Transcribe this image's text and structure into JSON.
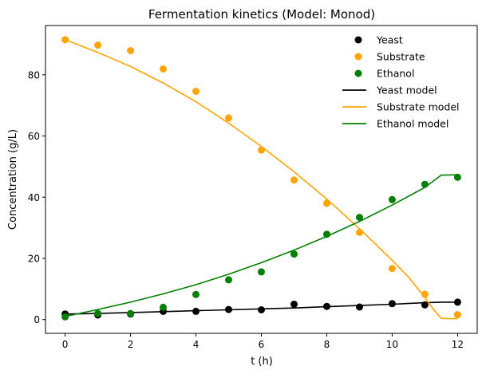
{
  "chart_data": {
    "type": "scatter",
    "title": "Fermentation kinetics (Model: Monod)",
    "xlabel": "t (h)",
    "ylabel": "Concentration (g/L)",
    "xlim": [
      -0.6,
      12.6
    ],
    "ylim": [
      -4.5,
      96.1
    ],
    "xticks": [
      0,
      2,
      4,
      6,
      8,
      10,
      12
    ],
    "yticks": [
      0,
      20,
      40,
      60,
      80
    ],
    "grid": false,
    "legend_position": "top-right",
    "x": [
      0,
      1,
      2,
      3,
      4,
      5,
      6,
      7,
      8,
      9,
      10,
      11,
      12
    ],
    "points": [
      {
        "name": "Yeast",
        "color": "#000000",
        "values": [
          1.8,
          1.5,
          1.8,
          2.7,
          2.7,
          3.3,
          3.2,
          5.0,
          4.3,
          4.1,
          5.2,
          4.8,
          5.7
        ]
      },
      {
        "name": "Substrate",
        "color": "#FFA500",
        "values": [
          91.5,
          89.7,
          87.9,
          81.9,
          74.6,
          65.9,
          55.4,
          45.6,
          38.0,
          28.5,
          16.7,
          8.3,
          1.6
        ]
      },
      {
        "name": "Ethanol",
        "color": "#008000",
        "values": [
          0.9,
          2.0,
          2.0,
          4.0,
          8.2,
          13.0,
          15.6,
          21.4,
          27.9,
          33.4,
          39.2,
          44.2,
          46.5
        ]
      }
    ],
    "models": [
      {
        "name": "Yeast model",
        "color": "#000000",
        "x": [
          0,
          1,
          2,
          3,
          4,
          5,
          6,
          7,
          8,
          9,
          10,
          11,
          11.5,
          12
        ],
        "values": [
          1.8,
          2.0,
          2.3,
          2.6,
          2.9,
          3.2,
          3.5,
          3.8,
          4.2,
          4.6,
          5.0,
          5.5,
          5.7,
          5.7
        ]
      },
      {
        "name": "Substrate model",
        "color": "#FFA500",
        "x": [
          0,
          1,
          2,
          3,
          4,
          5,
          6,
          7,
          8,
          9,
          10,
          10.5,
          11,
          11.25,
          11.5,
          11.75,
          12
        ],
        "values": [
          91.5,
          87.3,
          82.7,
          77.3,
          71.2,
          64.2,
          56.6,
          48.3,
          39.4,
          29.7,
          19.4,
          13.9,
          7.2,
          3.5,
          0.4,
          0.3,
          0.3
        ]
      },
      {
        "name": "Ethanol model",
        "color": "#008000",
        "x": [
          0,
          1,
          2,
          3,
          4,
          5,
          6,
          7,
          8,
          9,
          10,
          11,
          11.5,
          12
        ],
        "values": [
          1.0,
          3.3,
          5.7,
          8.4,
          11.4,
          14.8,
          18.6,
          22.7,
          27.2,
          32.1,
          37.4,
          43.2,
          47.2,
          47.3
        ]
      }
    ]
  }
}
